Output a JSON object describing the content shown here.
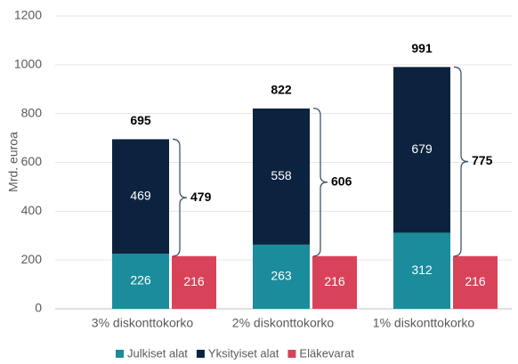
{
  "chart_data": {
    "type": "bar",
    "y_label": "Mrd. euroa",
    "categories": [
      "3% diskonttokorko",
      "2% diskonttokorko",
      "1% diskonttokorko"
    ],
    "series": [
      {
        "name": "Julkiset alat",
        "color": "#1b8c9c",
        "values": [
          226,
          263,
          312
        ],
        "stack": "a"
      },
      {
        "name": "Yksityiset alat",
        "color": "#0c2340",
        "values": [
          469,
          558,
          679
        ],
        "stack": "a"
      },
      {
        "name": "Eläkevarat",
        "color": "#d9435a",
        "values": [
          216,
          216,
          216
        ],
        "stack": "b"
      }
    ],
    "totals": [
      695,
      822,
      991
    ],
    "gaps": [
      479,
      606,
      775
    ],
    "ylim": [
      0,
      1200
    ],
    "yticks": [
      0,
      200,
      400,
      600,
      800,
      1000,
      1200
    ],
    "grid": true
  }
}
